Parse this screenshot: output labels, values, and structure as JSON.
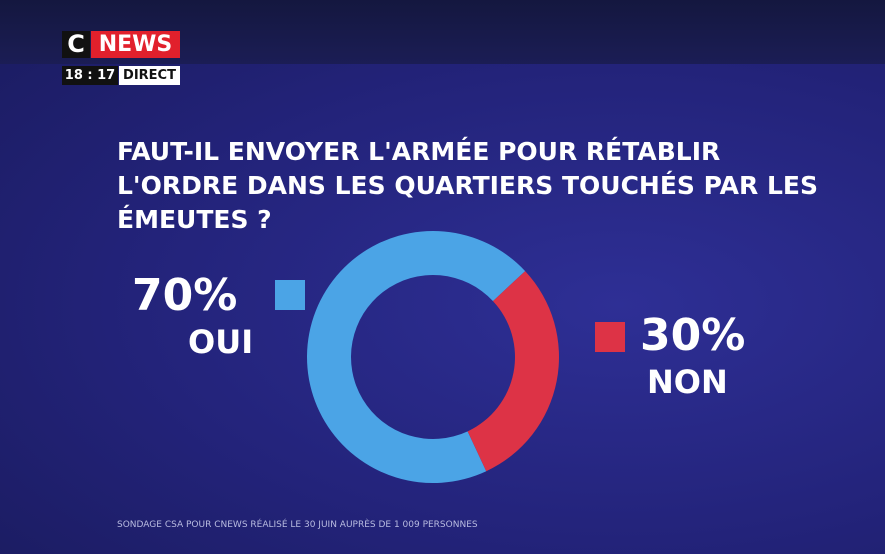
{
  "broadcast": {
    "channel_letter": "C",
    "channel_name": "NEWS",
    "time": "18 : 17",
    "live": "DIRECT"
  },
  "chart_data": {
    "type": "donut",
    "title": "FAUT-IL ENVOYER L'ARMÉE POUR RÉTABLIR L'ORDRE DANS LES QUARTIERS TOUCHÉS PAR LES ÉMEUTES ?",
    "categories": [
      "OUI",
      "NON"
    ],
    "values": [
      70,
      30
    ],
    "value_labels": [
      "70%",
      "30%"
    ],
    "colors": [
      "#4ba4e6",
      "#dd3346"
    ],
    "source": "SONDAGE CSA POUR CNEWS RÉALISÉ LE 30 JUIN AUPRÈS DE 1 009 PERSONNES"
  }
}
